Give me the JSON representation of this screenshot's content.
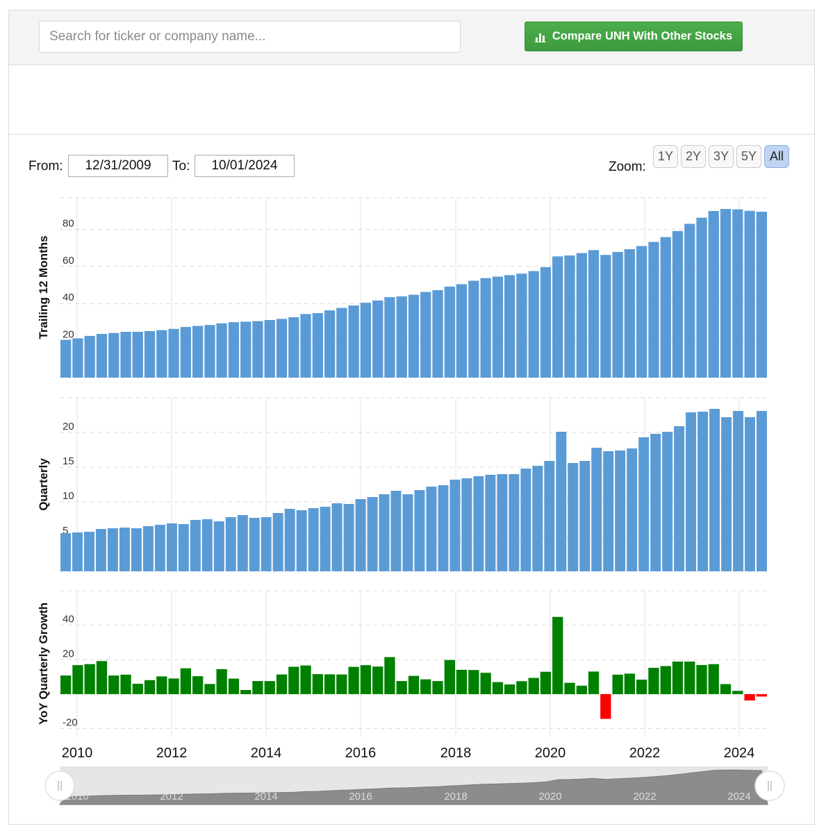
{
  "toolbar": {
    "search_placeholder": "Search for ticker or company name...",
    "compare_label": "Compare UNH With Other Stocks"
  },
  "range": {
    "from_label": "From:",
    "from_value": "12/31/2009",
    "to_label": "To:",
    "to_value": "10/01/2024",
    "zoom_label": "Zoom:",
    "zoom_options": [
      "1Y",
      "2Y",
      "3Y",
      "5Y",
      "All"
    ],
    "zoom_active": "All"
  },
  "colors": {
    "bar_blue": "#5b9bd5",
    "growth_positive": "#008000",
    "growth_negative": "#ff0000",
    "button_green": "#46a946",
    "navigator_fill": "#8c8c8c"
  },
  "icons": {
    "compare": "bar-chart-icon",
    "handle": "grip-handle-icon"
  },
  "chart_data": [
    {
      "type": "bar",
      "ylabel": "Trailing 12 Months",
      "yticks": [
        0,
        20,
        40,
        60,
        80
      ],
      "ylim": [
        0,
        97
      ],
      "grid": true,
      "xlabels": [
        "2010",
        "2012",
        "2014",
        "2016",
        "2018",
        "2020",
        "2022",
        "2024"
      ],
      "values": [
        20.4,
        21.2,
        22.5,
        23.6,
        24.1,
        24.7,
        24.7,
        25.1,
        25.6,
        26.3,
        27.3,
        27.9,
        28.4,
        29.3,
        29.9,
        30.2,
        30.5,
        31.1,
        31.7,
        32.6,
        34.3,
        34.8,
        36.3,
        37.6,
        38.9,
        40.4,
        41.6,
        43.4,
        43.8,
        44.7,
        46.2,
        47.2,
        49.1,
        50.4,
        52.3,
        53.7,
        54.5,
        55.3,
        56.1,
        57.5,
        59.6,
        65.4,
        65.9,
        67.2,
        68.8,
        66.2,
        67.8,
        69.3,
        71.0,
        73.2,
        75.8,
        79.1,
        83.0,
        86.3,
        89.9,
        91.0,
        90.8,
        90.0,
        89.5
      ]
    },
    {
      "type": "bar",
      "ylabel": "Quarterly",
      "yticks": [
        0,
        5,
        10,
        15,
        20
      ],
      "ylim": [
        0,
        25
      ],
      "grid": true,
      "xlabels": [
        "2010",
        "2012",
        "2014",
        "2016",
        "2018",
        "2020",
        "2022",
        "2024"
      ],
      "values": [
        5.5,
        5.6,
        5.7,
        6.1,
        6.2,
        6.3,
        6.2,
        6.5,
        6.7,
        6.9,
        6.8,
        7.4,
        7.5,
        7.2,
        7.8,
        8.1,
        7.7,
        7.8,
        8.4,
        9.0,
        8.8,
        9.1,
        9.3,
        9.8,
        9.7,
        10.4,
        10.7,
        11.1,
        11.6,
        11.1,
        11.7,
        12.2,
        12.4,
        13.2,
        13.4,
        13.7,
        13.9,
        14.0,
        14.0,
        14.8,
        15.2,
        15.9,
        20.1,
        15.6,
        15.9,
        17.8,
        17.3,
        17.4,
        17.7,
        19.3,
        19.8,
        20.1,
        20.9,
        22.9,
        23.0,
        23.4,
        22.2,
        23.1,
        22.2,
        23.1
      ]
    },
    {
      "type": "bar",
      "ylabel": "YoY Quarterly Growth",
      "yticks": [
        -20,
        0,
        20,
        40
      ],
      "ylim": [
        -25,
        60
      ],
      "grid": true,
      "xlabels": [
        "2010",
        "2012",
        "2014",
        "2016",
        "2018",
        "2020",
        "2022",
        "2024"
      ],
      "values": [
        10.8,
        16.8,
        17.4,
        19.2,
        10.8,
        11.3,
        6.0,
        8.1,
        10.3,
        9.1,
        15.0,
        10.4,
        5.9,
        14.5,
        9.0,
        2.4,
        7.6,
        7.6,
        11.4,
        15.9,
        16.6,
        11.6,
        11.5,
        11.4,
        15.8,
        16.8,
        16.0,
        21.5,
        7.6,
        10.6,
        8.6,
        7.6,
        19.8,
        14.1,
        14.0,
        12.4,
        7.0,
        5.6,
        7.5,
        9.4,
        13.0,
        44.8,
        6.6,
        4.9,
        13.1,
        -14.4,
        11.3,
        11.9,
        8.4,
        15.3,
        16.3,
        18.9,
        18.9,
        16.9,
        17.4,
        5.8,
        1.9,
        -3.7,
        -1.4
      ]
    }
  ],
  "navigator": {
    "labels": [
      "2010",
      "2012",
      "2014",
      "2016",
      "2018",
      "2020",
      "2022",
      "2024"
    ]
  }
}
